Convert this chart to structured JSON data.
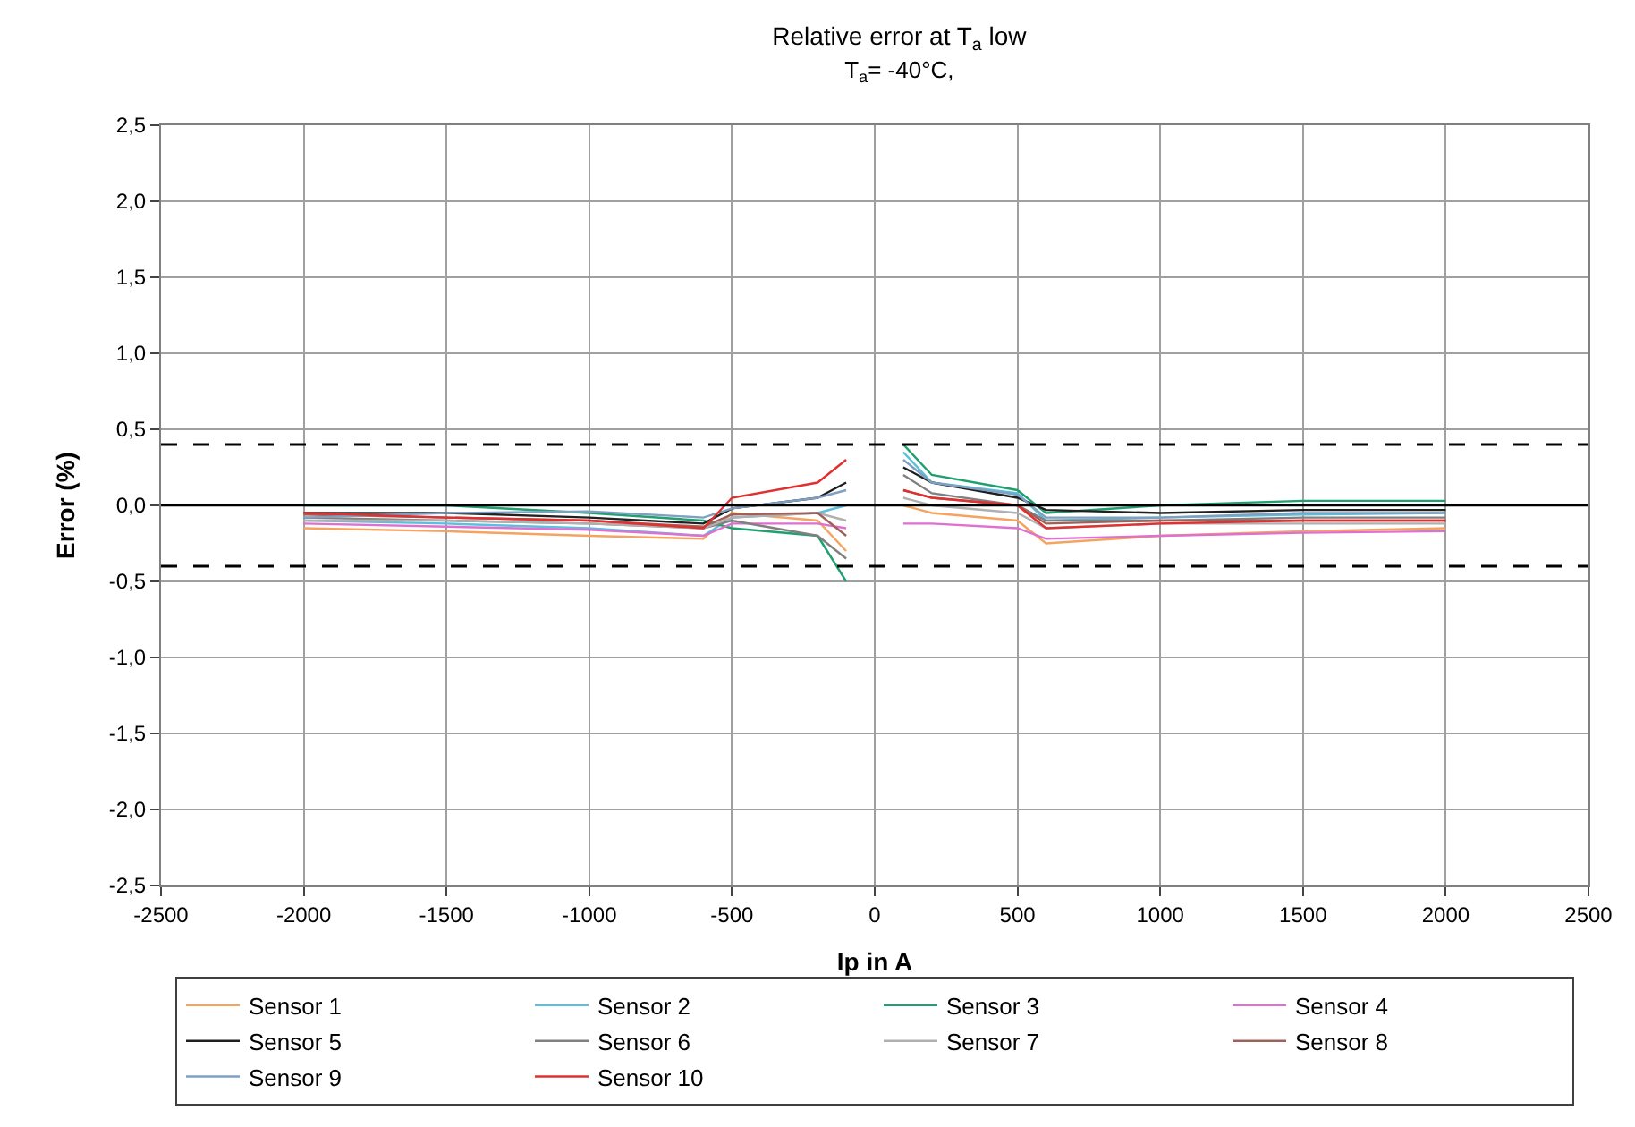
{
  "chart_data": {
    "type": "line",
    "title": "Relative error at T$_{a}$ low",
    "subtitle": "T$_{a}$= -40°C,",
    "xlabel": "Ip in A",
    "ylabel": "Error (%)",
    "x": [
      -2000,
      -1500,
      -1000,
      -600,
      -500,
      -200,
      -100,
      0,
      100,
      200,
      500,
      600,
      1000,
      1500,
      2000
    ],
    "series": [
      {
        "name": "Sensor 1",
        "color": "#f4a460",
        "values": [
          -0.15,
          -0.17,
          -0.2,
          -0.22,
          -0.05,
          -0.1,
          -0.3,
          null,
          0.0,
          -0.05,
          -0.1,
          -0.25,
          -0.2,
          -0.17,
          -0.15
        ]
      },
      {
        "name": "Sensor 2",
        "color": "#5bc0de",
        "values": [
          -0.1,
          -0.12,
          -0.15,
          -0.2,
          -0.08,
          -0.05,
          0.0,
          null,
          0.35,
          0.15,
          0.08,
          -0.1,
          -0.08,
          -0.06,
          -0.05
        ]
      },
      {
        "name": "Sensor 3",
        "color": "#20a070",
        "values": [
          0.0,
          0.0,
          -0.05,
          -0.1,
          -0.15,
          -0.2,
          -0.5,
          null,
          0.4,
          0.2,
          0.1,
          -0.05,
          0.0,
          0.03,
          0.03
        ]
      },
      {
        "name": "Sensor 4",
        "color": "#e070d0",
        "values": [
          -0.12,
          -0.14,
          -0.16,
          -0.2,
          -0.12,
          -0.12,
          -0.15,
          null,
          -0.12,
          -0.12,
          -0.15,
          -0.22,
          -0.2,
          -0.18,
          -0.17
        ]
      },
      {
        "name": "Sensor 5",
        "color": "#202020",
        "values": [
          -0.05,
          -0.05,
          -0.08,
          -0.12,
          -0.02,
          0.05,
          0.15,
          null,
          0.25,
          0.15,
          0.05,
          -0.03,
          -0.05,
          -0.03,
          -0.03
        ]
      },
      {
        "name": "Sensor 6",
        "color": "#808080",
        "values": [
          -0.08,
          -0.1,
          -0.12,
          -0.15,
          -0.1,
          -0.2,
          -0.35,
          null,
          0.2,
          0.08,
          0.0,
          -0.1,
          -0.1,
          -0.08,
          -0.08
        ]
      },
      {
        "name": "Sensor 7",
        "color": "#b0b0b0",
        "values": [
          -0.1,
          -0.1,
          -0.12,
          -0.15,
          -0.08,
          -0.05,
          -0.1,
          null,
          0.05,
          0.0,
          -0.05,
          -0.15,
          -0.12,
          -0.12,
          -0.12
        ]
      },
      {
        "name": "Sensor 8",
        "color": "#a0605a",
        "values": [
          -0.06,
          -0.08,
          -0.1,
          -0.14,
          -0.06,
          -0.05,
          -0.2,
          null,
          0.1,
          0.05,
          0.0,
          -0.12,
          -0.1,
          -0.1,
          -0.1
        ]
      },
      {
        "name": "Sensor 9",
        "color": "#7fa0c0",
        "values": [
          -0.08,
          -0.05,
          -0.04,
          -0.08,
          -0.02,
          0.05,
          0.1,
          null,
          0.3,
          0.15,
          0.07,
          -0.08,
          -0.08,
          -0.05,
          -0.05
        ]
      },
      {
        "name": "Sensor 10",
        "color": "#e03030",
        "values": [
          -0.05,
          -0.08,
          -0.1,
          -0.15,
          0.05,
          0.15,
          0.3,
          null,
          0.1,
          0.05,
          0.0,
          -0.15,
          -0.12,
          -0.1,
          -0.1
        ]
      }
    ],
    "xlim": [
      -2500,
      2500
    ],
    "xticks": [
      -2500,
      -2000,
      -1500,
      -1000,
      -500,
      0,
      500,
      1000,
      1500,
      2000,
      2500
    ],
    "ylim": [
      -2.5,
      2.5
    ],
    "yticks": [
      {
        "value": -2.5,
        "label": "-2,5"
      },
      {
        "value": -2.0,
        "label": "-2,0"
      },
      {
        "value": -1.5,
        "label": "-1,5"
      },
      {
        "value": -1.0,
        "label": "-1,0"
      },
      {
        "value": -0.5,
        "label": "-0,5"
      },
      {
        "value": 0.0,
        "label": "0,0"
      },
      {
        "value": 0.5,
        "label": "0,5"
      },
      {
        "value": 1.0,
        "label": "1,0"
      },
      {
        "value": 1.5,
        "label": "1,5"
      },
      {
        "value": 2.0,
        "label": "2,0"
      },
      {
        "value": 2.5,
        "label": "2,5"
      }
    ],
    "ref_lines": [
      {
        "axis": "y",
        "value": 0.4,
        "color": "#000000",
        "line_style": "dashed"
      },
      {
        "axis": "y",
        "value": -0.4,
        "color": "#000000",
        "line_style": "dashed"
      },
      {
        "axis": "y",
        "value": 0.0,
        "color": "#000000",
        "line_style": "solid"
      }
    ],
    "grid": true,
    "legend": "bottom",
    "marker": "none",
    "line_style": "solid"
  }
}
